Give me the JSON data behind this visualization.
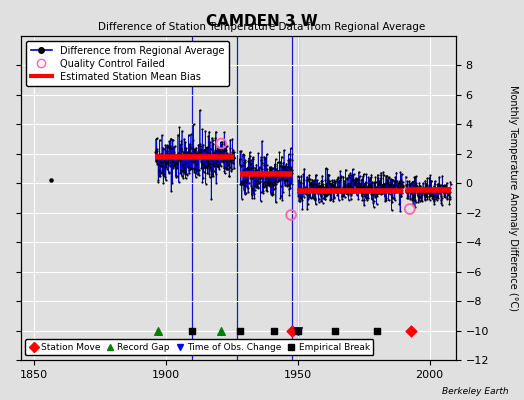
{
  "title": "CAMDEN 3 W",
  "subtitle": "Difference of Station Temperature Data from Regional Average",
  "ylabel": "Monthly Temperature Anomaly Difference (°C)",
  "xlim": [
    1845,
    2010
  ],
  "ylim": [
    -12,
    10
  ],
  "yticks": [
    -12,
    -10,
    -8,
    -6,
    -4,
    -2,
    0,
    2,
    4,
    6,
    8
  ],
  "xticks": [
    1850,
    1900,
    1950,
    2000
  ],
  "bg_color": "#e0e0e0",
  "grid_color": "#ffffff",
  "seed": 42,
  "isolated_point": {
    "year": 1856.5,
    "value": 0.25
  },
  "segments": [
    {
      "start": 1896,
      "end": 1926,
      "mean": 1.7,
      "std": 0.85,
      "bias_start": 1896,
      "bias_end": 1926,
      "bias": 1.8
    },
    {
      "start": 1928,
      "end": 1948,
      "mean": 0.55,
      "std": 0.75,
      "bias_start": 1928,
      "bias_end": 1948,
      "bias": 0.65
    },
    {
      "start": 1950,
      "end": 1990,
      "mean": -0.35,
      "std": 0.52,
      "bias_start": 1950,
      "bias_end": 1990,
      "bias": -0.5
    },
    {
      "start": 1991,
      "end": 2008,
      "mean": -0.55,
      "std": 0.42,
      "bias_start": 1991,
      "bias_end": 2008,
      "bias": -0.45
    }
  ],
  "qc_failed": [
    {
      "year": 1921.0,
      "value": 2.7
    },
    {
      "year": 1947.5,
      "value": -2.15
    },
    {
      "year": 1992.5,
      "value": -1.75
    }
  ],
  "vertical_lines": [
    {
      "year": 1910,
      "ymin": -10.5,
      "ymax": 10
    },
    {
      "year": 1927,
      "ymin": -10.5,
      "ymax": 10
    },
    {
      "year": 1948,
      "ymin": -10.5,
      "ymax": 10
    },
    {
      "year": 1950,
      "ymin": -10.5,
      "ymax": 10
    }
  ],
  "event_markers": {
    "station_moves": [
      1948,
      1993
    ],
    "record_gaps": [
      1897,
      1921
    ],
    "time_obs_changes": [
      1950
    ],
    "empirical_breaks": [
      1910,
      1928,
      1941,
      1950,
      1964,
      1980
    ]
  },
  "marker_y": -10,
  "line_color": "#0000cc",
  "dot_color": "#000000",
  "bias_color": "#ff0000",
  "qc_color": "#ff66aa"
}
